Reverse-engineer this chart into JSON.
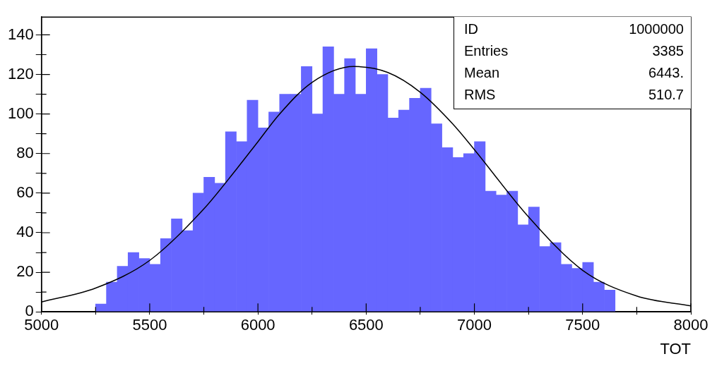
{
  "chart_data": {
    "type": "histogram",
    "xlabel": "TOT",
    "xlim": [
      5000,
      8000
    ],
    "xticks": [
      5000,
      {
        "value": 5250,
        "label": null
      },
      5500,
      {
        "value": 5750,
        "label": null
      },
      6000,
      {
        "value": 6250,
        "label": null
      },
      6500,
      {
        "value": 6750,
        "label": null
      },
      7000,
      {
        "value": 7250,
        "label": null
      },
      7500,
      {
        "value": 7750,
        "label": null
      },
      8000
    ],
    "ylim": [
      0,
      149
    ],
    "yticks": [
      0,
      {
        "value": 10,
        "label": null
      },
      20,
      {
        "value": 30,
        "label": null
      },
      40,
      {
        "value": 50,
        "label": null
      },
      60,
      {
        "value": 70,
        "label": null
      },
      80,
      {
        "value": 90,
        "label": null
      },
      100,
      {
        "value": 110,
        "label": null
      },
      120,
      {
        "value": 130,
        "label": null
      },
      140
    ],
    "grid": false,
    "legend": false,
    "annotations": [
      "ID",
      "1000000",
      "Entries",
      "3385",
      "Mean",
      "6443.",
      "RMS",
      "510.7"
    ],
    "color": "#6666ff",
    "bins": [
      5250,
      5300,
      5350,
      5400,
      5450,
      5500,
      5550,
      5600,
      5650,
      5700,
      5750,
      5800,
      5850,
      5900,
      5950,
      6000,
      6050,
      6100,
      6150,
      6200,
      6250,
      6300,
      6350,
      6400,
      6450,
      6500,
      6550,
      6600,
      6650,
      6700,
      6750,
      6800,
      6850,
      6900,
      6950,
      7000,
      7050,
      7100,
      7150,
      7200,
      7250,
      7300,
      7350,
      7400,
      7450,
      7500,
      7550,
      7600,
      7650
    ],
    "values": [
      4,
      15,
      23,
      30,
      27,
      24,
      37,
      47,
      41,
      60,
      68,
      65,
      91,
      86,
      107,
      93,
      101,
      110,
      110,
      124,
      100,
      134,
      110,
      128,
      110,
      133,
      120,
      98,
      102,
      108,
      113,
      95,
      83,
      78,
      80,
      86,
      61,
      59,
      61,
      44,
      53,
      33,
      35,
      24,
      22,
      25,
      15,
      11
    ],
    "series": [
      {
        "type": "line",
        "color": "#000000",
        "x": [
          5000,
          5250,
          5500,
          5750,
          5900,
          6000,
          6100,
          6250,
          6443,
          6600,
          6750,
          6900,
          7000,
          7250,
          7500,
          7750,
          8000
        ],
        "values": [
          5,
          12,
          26,
          52,
          72,
          86,
          100,
          116,
          124,
          121,
          111,
          95,
          82,
          48,
          21,
          8,
          3
        ]
      }
    ]
  }
}
